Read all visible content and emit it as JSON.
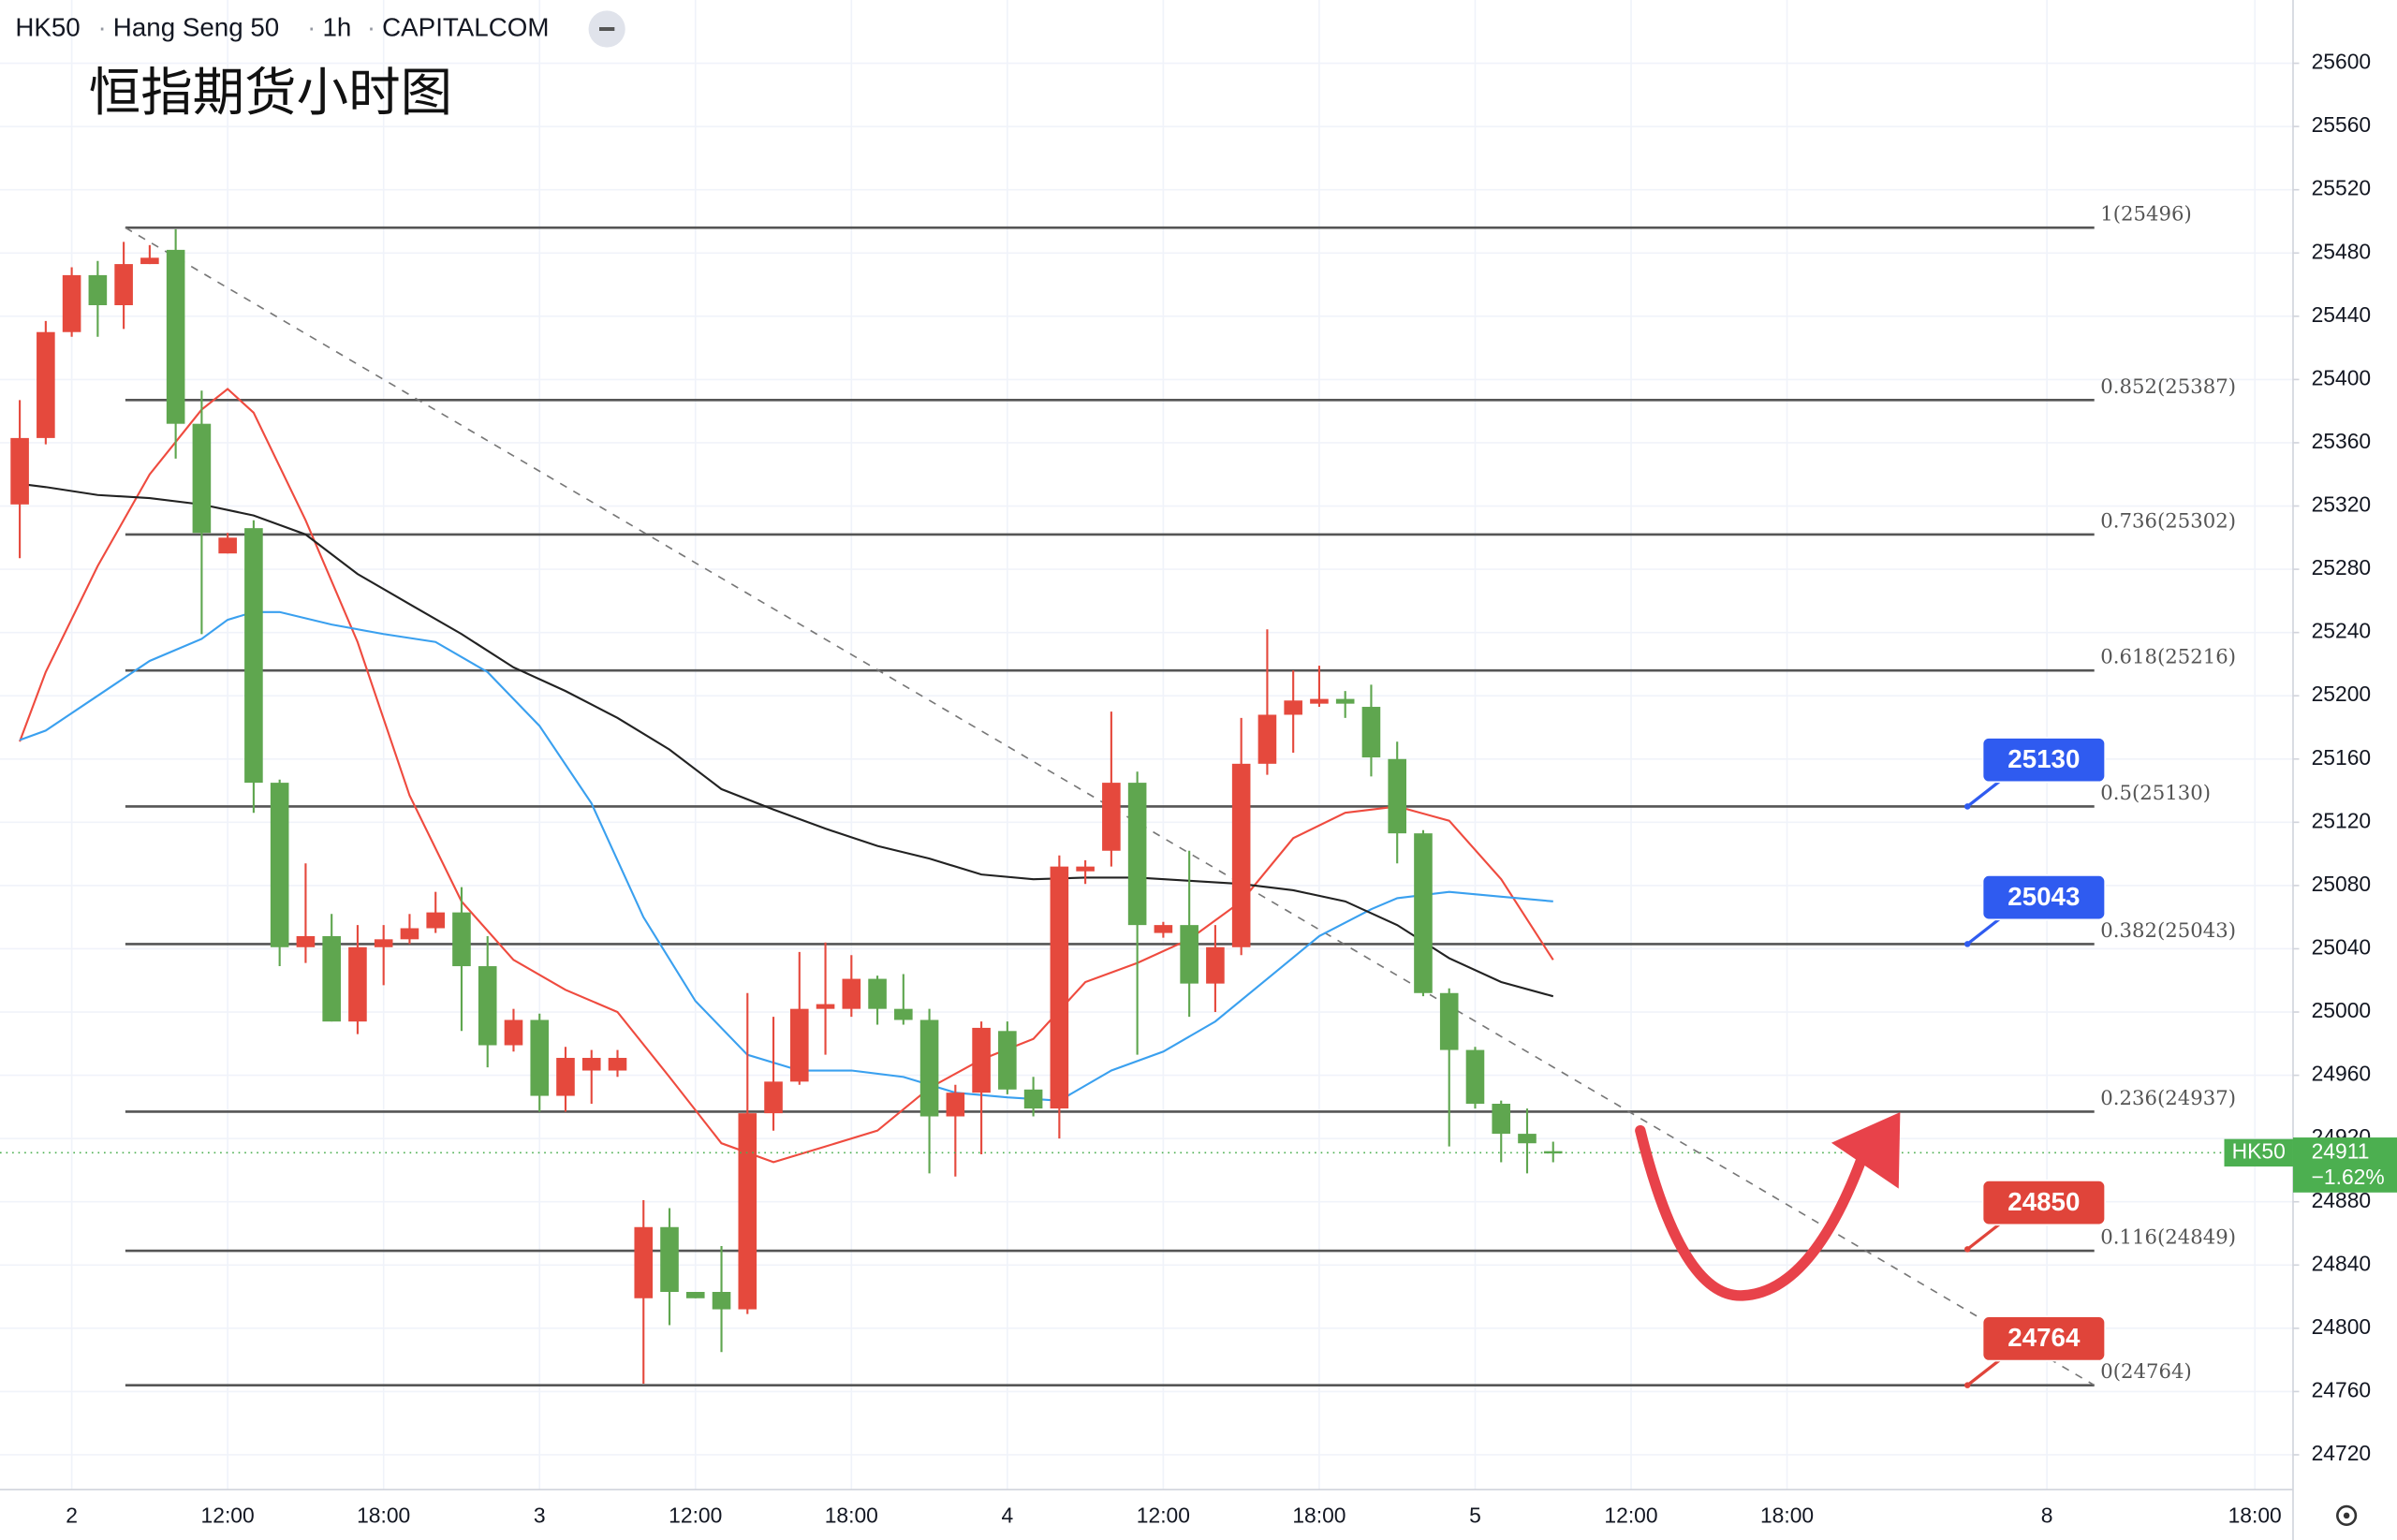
{
  "header": {
    "symbol": "HK50",
    "name": "Hang Seng 50",
    "interval": "1h",
    "source": "CAPITALCOM"
  },
  "chart_data": {
    "type": "candlestick",
    "title": "恒指期货小时图",
    "ylim": [
      24698,
      25640
    ],
    "yticks": [
      24720,
      24760,
      24800,
      24840,
      24880,
      24920,
      24960,
      25000,
      25040,
      25080,
      25120,
      25160,
      25200,
      25240,
      25280,
      25320,
      25360,
      25400,
      25440,
      25480,
      25520,
      25560,
      25600
    ],
    "xlim": [
      -0.76,
      87.47
    ],
    "xticks": [
      {
        "value": 2,
        "label": "2"
      },
      {
        "value": 8,
        "label": "12:00"
      },
      {
        "value": 14,
        "label": "18:00"
      },
      {
        "value": 20,
        "label": "3"
      },
      {
        "value": 26,
        "label": "12:00"
      },
      {
        "value": 32,
        "label": "18:00"
      },
      {
        "value": 38,
        "label": "4"
      },
      {
        "value": 44,
        "label": "12:00"
      },
      {
        "value": 50,
        "label": "18:00"
      },
      {
        "value": 56,
        "label": "5"
      },
      {
        "value": 62,
        "label": "12:00"
      },
      {
        "value": 68,
        "label": "18:00"
      },
      {
        "value": 78,
        "label": "8"
      },
      {
        "value": 86,
        "label": "18:00"
      }
    ],
    "grid": true,
    "up_color": "#e5493d",
    "down_color": "#5fa64f",
    "open": [
      25321,
      25363,
      25430,
      25466,
      25447,
      25473,
      25482,
      25372,
      25290,
      25306,
      25145,
      25041,
      25048,
      24994,
      25041,
      25046,
      25053,
      25063,
      25029,
      24979,
      24995,
      24947,
      24963,
      24963,
      24819,
      24864,
      24823,
      24823,
      24812,
      24936,
      24956,
      25002,
      25002,
      25021,
      25002,
      24995,
      24934,
      24949,
      24988,
      24951,
      24939,
      25089,
      25102,
      25145,
      25050,
      25055,
      25018,
      25041,
      25157,
      25188,
      25195,
      25198,
      25193,
      25160,
      25113,
      25012,
      24976,
      24942,
      24923,
      24912
    ],
    "high": [
      25387,
      25437,
      25471,
      25475,
      25487,
      25485,
      25495,
      25393,
      25303,
      25311,
      25147,
      25094,
      25062,
      25055,
      25055,
      25062,
      25076,
      25079,
      25048,
      25002,
      24999,
      24978,
      24976,
      24976,
      24881,
      24876,
      24823,
      24852,
      25012,
      24997,
      25038,
      25044,
      25036,
      25023,
      25024,
      25002,
      24954,
      24994,
      24994,
      24959,
      25099,
      25096,
      25190,
      25152,
      25057,
      25102,
      25055,
      25186,
      25242,
      25216,
      25219,
      25203,
      25207,
      25171,
      25115,
      25015,
      24978,
      24944,
      24939,
      24918
    ],
    "low": [
      25287,
      25359,
      25427,
      25427,
      25432,
      25473,
      25350,
      25239,
      25290,
      25126,
      25029,
      25031,
      24994,
      24986,
      25017,
      25043,
      25050,
      24988,
      24965,
      24975,
      24937,
      24937,
      24942,
      24959,
      24765,
      24802,
      24819,
      24785,
      24809,
      24925,
      24954,
      24973,
      24997,
      24992,
      24992,
      24898,
      24896,
      24910,
      24948,
      24934,
      24920,
      25081,
      25092,
      24973,
      25047,
      24997,
      25000,
      25036,
      25150,
      25164,
      25193,
      25186,
      25149,
      25094,
      25010,
      24915,
      24939,
      24905,
      24898,
      24905
    ],
    "close": [
      25363,
      25430,
      25466,
      25447,
      25473,
      25477,
      25372,
      25303,
      25300,
      25145,
      25041,
      25048,
      24994,
      25041,
      25046,
      25053,
      25063,
      25029,
      24979,
      24995,
      24947,
      24971,
      24971,
      24971,
      24864,
      24823,
      24819,
      24812,
      24936,
      24956,
      25002,
      25005,
      25021,
      25002,
      24995,
      24934,
      24949,
      24990,
      24951,
      24939,
      25092,
      25092,
      25145,
      25055,
      25055,
      25018,
      25041,
      25157,
      25188,
      25197,
      25198,
      25195,
      25161,
      25113,
      25012,
      24976,
      24942,
      24923,
      24917,
      24911
    ],
    "series": [
      {
        "color": "#ef4b3f",
        "x": [
          0,
          1,
          3,
          5,
          7,
          8,
          9,
          11,
          13,
          15,
          17,
          19,
          21,
          23,
          25,
          27,
          29,
          31,
          33,
          35,
          37,
          39,
          41,
          43,
          45,
          47,
          49,
          51,
          53,
          55,
          57,
          59
        ],
        "values": [
          25171,
          25215,
          25282,
          25340,
          25381,
          25394,
          25379,
          25311,
          25234,
          25137,
          25070,
          25033,
          25014,
          25000,
          24959,
          24917,
          24905,
          24915,
          24925,
          24952,
          24970,
          24983,
          25019,
          25031,
          25046,
          25070,
          25110,
          25126,
          25130,
          25121,
          25084,
          25033
        ]
      },
      {
        "color": "#3aa0ef",
        "x": [
          0,
          1,
          3,
          5,
          7,
          8,
          9,
          10,
          12,
          14,
          16,
          18,
          20,
          22,
          24,
          26,
          28,
          30,
          32,
          34,
          36,
          38,
          40,
          42,
          44,
          46,
          48,
          50,
          52,
          53,
          55,
          57,
          59
        ],
        "values": [
          25172,
          25178,
          25200,
          25222,
          25236,
          25248,
          25253,
          25253,
          25245,
          25239,
          25234,
          25215,
          25181,
          25132,
          25060,
          25007,
          24973,
          24963,
          24963,
          24959,
          24949,
          24946,
          24944,
          24963,
          24975,
          24994,
          25021,
          25048,
          25065,
          25072,
          25076,
          25073,
          25070
        ]
      },
      {
        "color": "#222222",
        "x": [
          0,
          1,
          3,
          5,
          7,
          9,
          11,
          13,
          15,
          17,
          19,
          21,
          23,
          25,
          27,
          29,
          31,
          33,
          35,
          37,
          39,
          41,
          43,
          45,
          47,
          49,
          51,
          53,
          55,
          57,
          59
        ],
        "values": [
          25334,
          25332,
          25327,
          25325,
          25321,
          25314,
          25302,
          25277,
          25258,
          25239,
          25218,
          25203,
          25186,
          25166,
          25141,
          25128,
          25116,
          25105,
          25097,
          25087,
          25084,
          25085,
          25085,
          25083,
          25081,
          25077,
          25070,
          25055,
          25034,
          25019,
          25010
        ]
      }
    ],
    "fib_levels": [
      {
        "value": 25496,
        "label": "1(25496)"
      },
      {
        "value": 25387,
        "label": "0.852(25387)"
      },
      {
        "value": 25302,
        "label": "0.736(25302)"
      },
      {
        "value": 25216,
        "label": "0.618(25216)"
      },
      {
        "value": 25130,
        "label": "0.5(25130)"
      },
      {
        "value": 25043,
        "label": "0.382(25043)"
      },
      {
        "value": 24937,
        "label": "0.236(24937)"
      },
      {
        "value": 24849,
        "label": "0.116(24849)"
      },
      {
        "value": 24764,
        "label": "0(24764)"
      }
    ],
    "callouts": [
      {
        "value": 25130,
        "color": "#2f5bf0"
      },
      {
        "value": 25043,
        "color": "#2f5bf0"
      },
      {
        "value": 24850,
        "color": "#e0443a"
      },
      {
        "value": 24764,
        "color": "#e0443a"
      }
    ],
    "last_price": {
      "symbol": "HK50",
      "value": 24911,
      "change": "−1.62%",
      "color": "#4caf50"
    }
  }
}
